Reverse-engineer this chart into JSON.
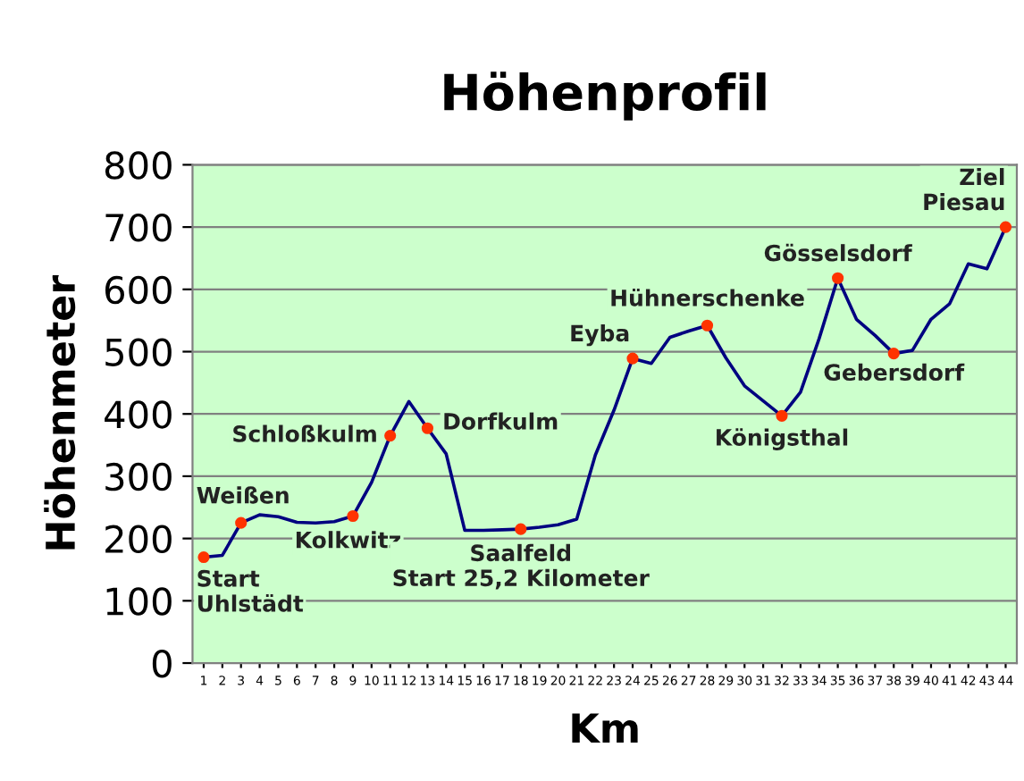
{
  "chart_data": {
    "type": "line",
    "title": "Höhenprofil",
    "xlabel": "Km",
    "ylabel": "Höhenmeter",
    "categories": [
      "1",
      "2",
      "3",
      "4",
      "5",
      "6",
      "7",
      "8",
      "9",
      "10",
      "11",
      "12",
      "13",
      "14",
      "15",
      "16",
      "17",
      "18",
      "19",
      "20",
      "21",
      "22",
      "23",
      "24",
      "25",
      "26",
      "27",
      "28",
      "29",
      "30",
      "31",
      "32",
      "33",
      "34",
      "35",
      "36",
      "37",
      "38",
      "39",
      "40",
      "41",
      "42",
      "43",
      "44"
    ],
    "series": [
      {
        "color": "#000080",
        "values": [
          170,
          173,
          225,
          238,
          235,
          226,
          225,
          227,
          236,
          290,
          365,
          420,
          377,
          336,
          213,
          213,
          214,
          215,
          218,
          222,
          231,
          334,
          406,
          489,
          481,
          523,
          533,
          542,
          490,
          445,
          421,
          397,
          435,
          521,
          618,
          552,
          526,
          497,
          502,
          552,
          577,
          641,
          633,
          700
        ]
      },
      {
        "type": "scatter",
        "color": "#ff3300",
        "values": [
          170,
          null,
          225,
          null,
          null,
          null,
          null,
          null,
          236,
          null,
          365,
          null,
          377,
          null,
          null,
          null,
          null,
          215,
          null,
          null,
          null,
          null,
          null,
          489,
          null,
          null,
          null,
          542,
          null,
          null,
          null,
          397,
          null,
          null,
          618,
          null,
          null,
          497,
          null,
          null,
          null,
          null,
          null,
          700
        ]
      }
    ],
    "annotations": [
      {
        "text": "Start\nUhlstädt",
        "x": "1",
        "y": 170
      },
      {
        "text": "Weißen",
        "x": "3",
        "y": 225
      },
      {
        "text": "Kolkwitz",
        "x": "9",
        "y": 236
      },
      {
        "text": "Schloßkulm",
        "x": "11",
        "y": 365
      },
      {
        "text": "Dorfkulm",
        "x": "13",
        "y": 377
      },
      {
        "text": "Saalfeld\nStart 25,2 Kilometer",
        "x": "18",
        "y": 215
      },
      {
        "text": "Eyba",
        "x": "24",
        "y": 489
      },
      {
        "text": "Hühnerschenke",
        "x": "28",
        "y": 542
      },
      {
        "text": "Königsthal",
        "x": "32",
        "y": 397
      },
      {
        "text": "Gösselsdorf",
        "x": "35",
        "y": 618
      },
      {
        "text": "Gebersdorf",
        "x": "38",
        "y": 497
      },
      {
        "text": "Ziel\nPiesau",
        "x": "44",
        "y": 700
      }
    ],
    "ylim": [
      0,
      800
    ],
    "yticks": [
      0,
      100,
      200,
      300,
      400,
      500,
      600,
      700,
      800
    ],
    "grid": "y",
    "line_style": "solid"
  }
}
